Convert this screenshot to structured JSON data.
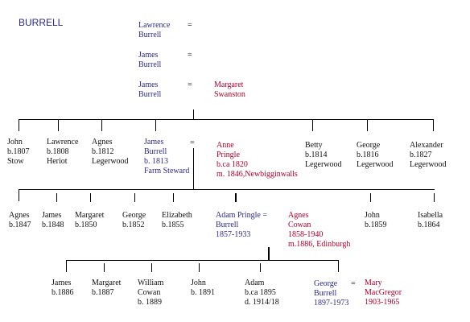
{
  "title": "BURRELL",
  "ancestors": [
    {
      "name1": "Lawrence",
      "name2": "Burrell",
      "eq": "="
    },
    {
      "name1": "James",
      "name2": "Burrell",
      "eq": "="
    },
    {
      "name1": "James",
      "name2": "Burrell",
      "eq": "=",
      "spouse1": "Margaret",
      "spouse2": "Swanston"
    }
  ],
  "gen1": [
    {
      "l1": "John",
      "l2": "b.1807",
      "l3": "Stow"
    },
    {
      "l1": "Lawrence",
      "l2": "b.1808",
      "l3": "Heriot"
    },
    {
      "l1": "Agnes",
      "l2": "b.1812",
      "l3": "Legerwood"
    },
    {
      "l1": "James",
      "l2": "Burrell",
      "l3": "b. 1813",
      "l4": "Farm Steward",
      "eq": "="
    },
    {
      "l1": "Anne",
      "l2": "Pringle",
      "l3": "b.ca 1820",
      "l4": "m. 1846,Newbigginwalls"
    },
    {
      "l1": "Betty",
      "l2": "b.1814",
      "l3": "Legerwood"
    },
    {
      "l1": "George",
      "l2": "b.1816",
      "l3": "Legerwood"
    },
    {
      "l1": "Alexander",
      "l2": "b.1827",
      "l3": "Legerwood"
    }
  ],
  "gen2": [
    {
      "l1": "Agnes",
      "l2": "b.1847"
    },
    {
      "l1": "James",
      "l2": "b.1848"
    },
    {
      "l1": "Margaret",
      "l2": "b.1850"
    },
    {
      "l1": "George",
      "l2": "b.1852"
    },
    {
      "l1": "Elizabeth",
      "l2": "b.1855"
    },
    {
      "l1": "Adam  Pringle =",
      "l2": "Burrell",
      "l3": "1857-1933"
    },
    {
      "l1": "Agnes",
      "l2": "Cowan",
      "l3": "1858-1940",
      "l4": "m.1886, Edinburgh"
    },
    {
      "l1": "John",
      "l2": "b.1859"
    },
    {
      "l1": "Isabella",
      "l2": "b.1864"
    }
  ],
  "gen3": [
    {
      "l1": "James",
      "l2": "b.1886"
    },
    {
      "l1": "Margaret",
      "l2": "b.1887"
    },
    {
      "l1": "William",
      "l2": "Cowan",
      "l3": "b. 1889"
    },
    {
      "l1": "John",
      "l2": "b. 1891"
    },
    {
      "l1": "Adam",
      "l2": "b.ca 1895",
      "l3": "d. 1914/18"
    },
    {
      "l1": "George",
      "l2": "Burrell",
      "l3": "1897-1973",
      "eq": "="
    },
    {
      "l1": "Mary",
      "l2": "MacGregor",
      "l3": "1903-1965"
    }
  ],
  "colors": {
    "blue": "#2a2a8c",
    "red": "#b0002a"
  }
}
